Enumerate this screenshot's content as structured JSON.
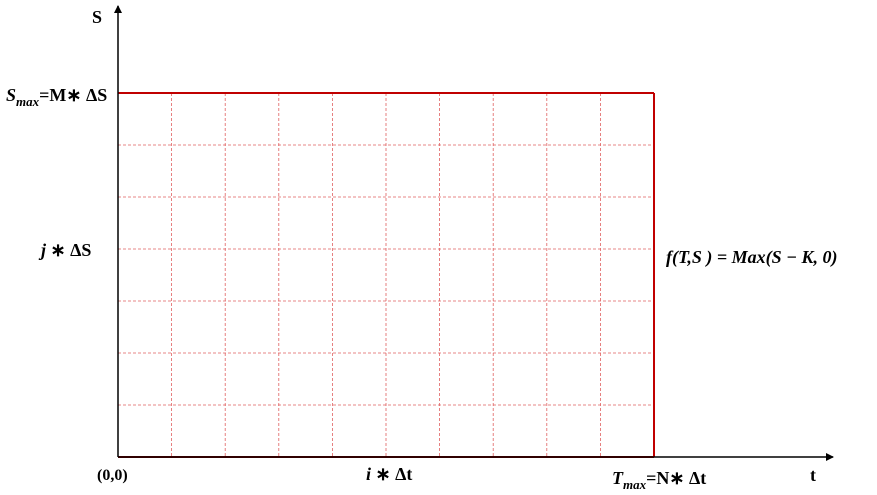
{
  "axes": {
    "y_axis_label": "S",
    "x_axis_label": "t",
    "origin_label": "(0,0)"
  },
  "labels": {
    "smax_symbol": "S",
    "smax_subscript": "max",
    "smax_rest": "=M∗ ΔS",
    "j_symbol": "j",
    "j_rest": " ∗ ΔS",
    "i_symbol": "i",
    "i_rest": " ∗ Δt",
    "tmax_symbol": "T",
    "tmax_subscript": "max",
    "tmax_rest": "=N∗ Δt",
    "payoff": "f(T,S ) = Max(S − K, 0)"
  },
  "grid": {
    "columns": 10,
    "rows": 7,
    "boundary_color": "#c00000",
    "grid_color": "#e06060",
    "axis_color": "#000000"
  }
}
